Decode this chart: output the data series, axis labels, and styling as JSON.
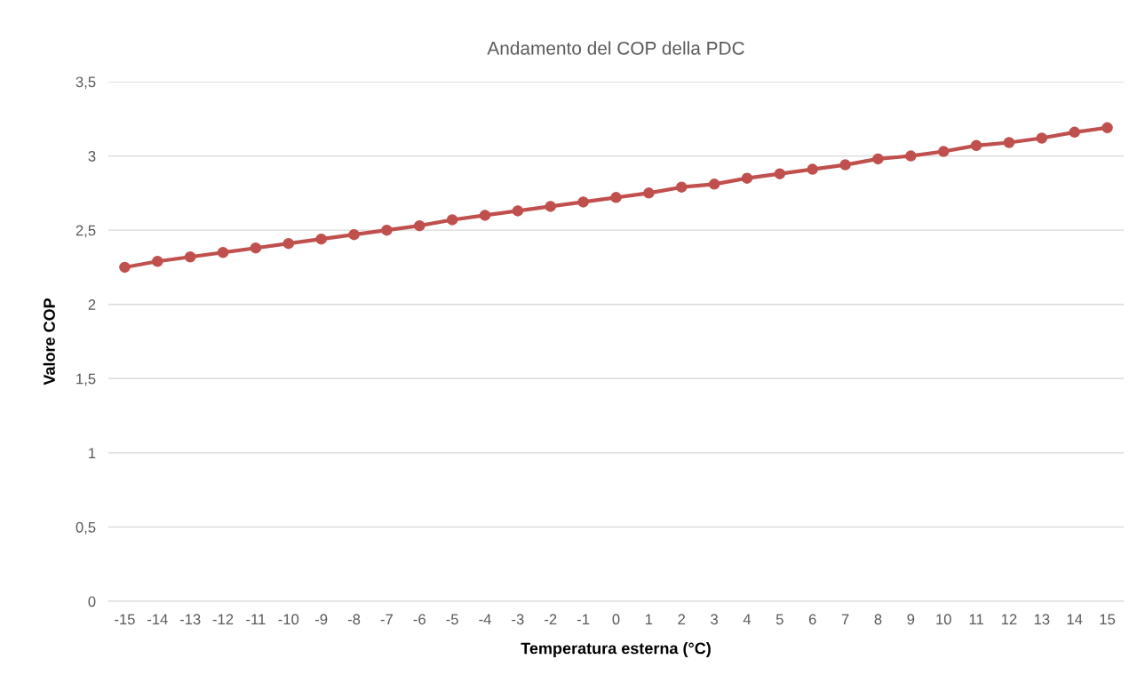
{
  "chart_data": {
    "type": "line",
    "title": "Andamento del COP della PDC",
    "xlabel": "Temperatura esterna (°C)",
    "ylabel": "Valore COP",
    "categories": [
      "-15",
      "-14",
      "-13",
      "-12",
      "-11",
      "-10",
      "-9",
      "-8",
      "-7",
      "-6",
      "-5",
      "-4",
      "-3",
      "-2",
      "-1",
      "0",
      "1",
      "2",
      "3",
      "4",
      "5",
      "6",
      "7",
      "8",
      "9",
      "10",
      "11",
      "12",
      "13",
      "14",
      "15"
    ],
    "series": [
      {
        "color": "#c0504d",
        "values": [
          2.25,
          2.29,
          2.32,
          2.35,
          2.38,
          2.41,
          2.44,
          2.47,
          2.5,
          2.53,
          2.57,
          2.6,
          2.63,
          2.66,
          2.69,
          2.72,
          2.75,
          2.79,
          2.81,
          2.85,
          2.88,
          2.91,
          2.94,
          2.98,
          3.0,
          3.03,
          3.07,
          3.09,
          3.12,
          3.16,
          3.19
        ]
      }
    ],
    "ylim": [
      0,
      3.5
    ],
    "yticks": [
      0,
      {
        "value": 0.5,
        "label": "0,5"
      },
      1,
      {
        "value": 1.5,
        "label": "1,5"
      },
      2,
      {
        "value": 2.5,
        "label": "2,5"
      },
      3,
      {
        "value": 3.5,
        "label": "3,5"
      }
    ],
    "grid": "y",
    "marker": "circle",
    "line_style": "solid"
  }
}
